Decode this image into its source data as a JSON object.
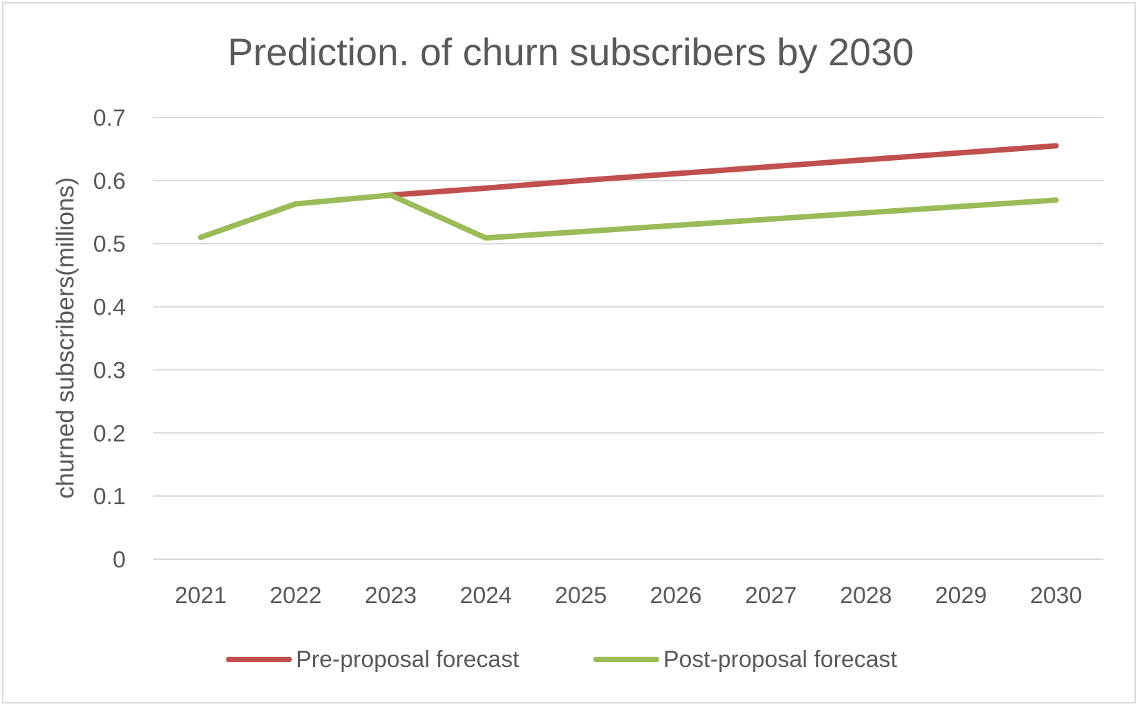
{
  "chart_data": {
    "type": "line",
    "title": "Prediction. of churn subscribers by 2030",
    "xlabel": "",
    "ylabel": "churned subscribers(millions)",
    "ylim": [
      0,
      0.7
    ],
    "yticks": [
      "0",
      "0.1",
      "0.2",
      "0.3",
      "0.4",
      "0.5",
      "0.6",
      "0.7"
    ],
    "categories": [
      "2021",
      "2022",
      "2023",
      "2024",
      "2025",
      "2026",
      "2027",
      "2028",
      "2029",
      "2030"
    ],
    "grid": "horizontal",
    "legend_position": "bottom",
    "series": [
      {
        "name": "Pre-proposal forecast",
        "color": "#c0504d",
        "values": [
          null,
          null,
          0.577,
          0.588,
          0.6,
          0.611,
          0.622,
          0.633,
          0.644,
          0.655
        ]
      },
      {
        "name": "Post-proposal forecast",
        "color": "#9bbb59",
        "values": [
          0.51,
          0.563,
          0.577,
          0.509,
          0.519,
          0.529,
          0.539,
          0.549,
          0.559,
          0.569
        ]
      }
    ]
  }
}
